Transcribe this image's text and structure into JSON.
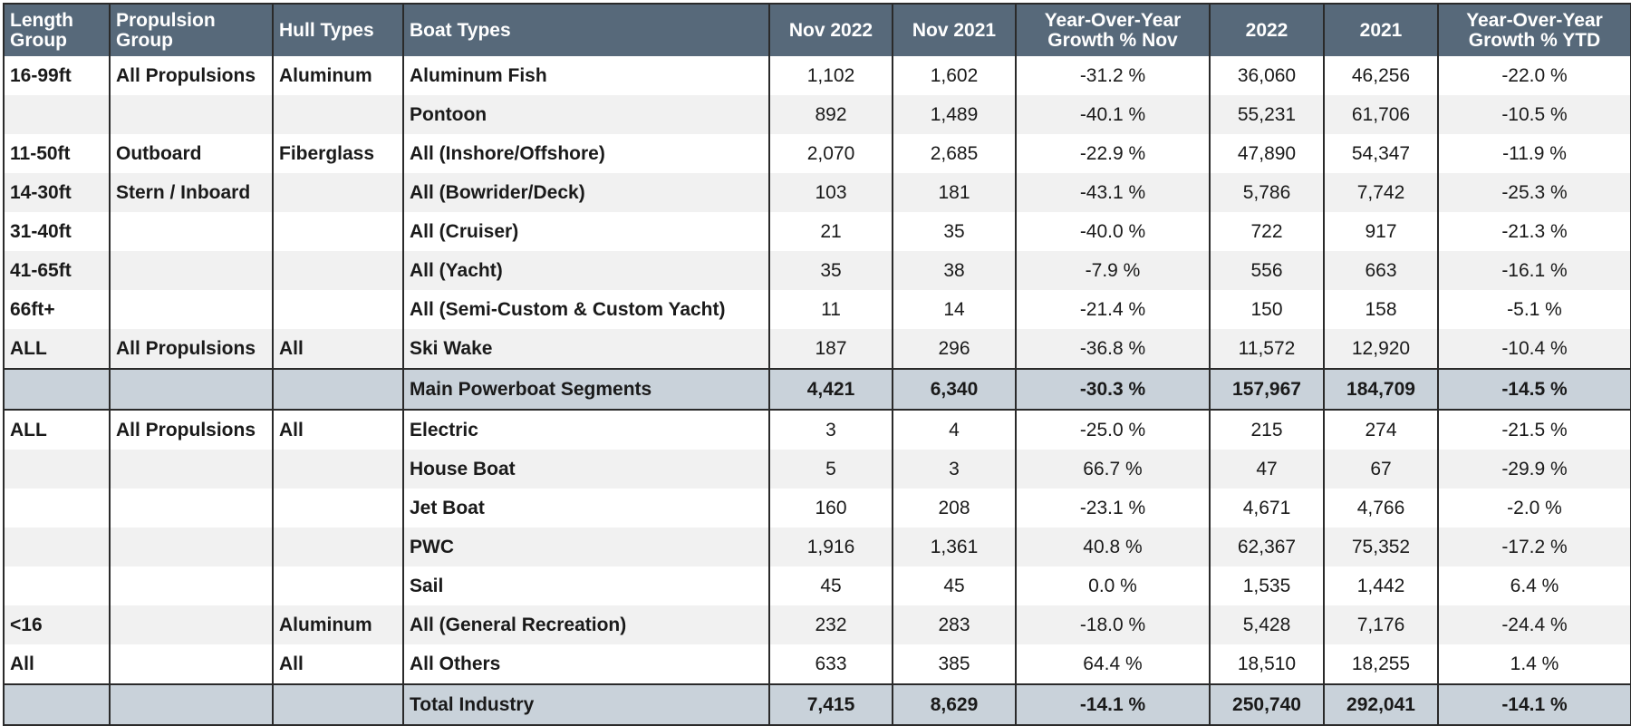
{
  "chart_data": {
    "type": "table",
    "columns": [
      "Length Group",
      "Propulsion Group",
      "Hull Types",
      "Boat Types",
      "Nov 2022",
      "Nov 2021",
      "Year-Over-Year Growth % Nov",
      "2022",
      "2021",
      "Year-Over-Year Growth % YTD"
    ],
    "rows": [
      [
        "16-99ft",
        "All Propulsions",
        "Aluminum",
        "Aluminum Fish",
        "1,102",
        "1,602",
        "-31.2 %",
        "36,060",
        "46,256",
        "-22.0 %"
      ],
      [
        "",
        "",
        "",
        "Pontoon",
        "892",
        "1,489",
        "-40.1 %",
        "55,231",
        "61,706",
        "-10.5 %"
      ],
      [
        "11-50ft",
        "Outboard",
        "Fiberglass",
        "All (Inshore/Offshore)",
        "2,070",
        "2,685",
        "-22.9 %",
        "47,890",
        "54,347",
        "-11.9 %"
      ],
      [
        "14-30ft",
        "Stern / Inboard",
        "",
        "All (Bowrider/Deck)",
        "103",
        "181",
        "-43.1 %",
        "5,786",
        "7,742",
        "-25.3 %"
      ],
      [
        "31-40ft",
        "",
        "",
        "All (Cruiser)",
        "21",
        "35",
        "-40.0 %",
        "722",
        "917",
        "-21.3 %"
      ],
      [
        "41-65ft",
        "",
        "",
        "All (Yacht)",
        "35",
        "38",
        "-7.9 %",
        "556",
        "663",
        "-16.1 %"
      ],
      [
        "66ft+",
        "",
        "",
        "All (Semi-Custom & Custom Yacht)",
        "11",
        "14",
        "-21.4 %",
        "150",
        "158",
        "-5.1 %"
      ],
      [
        "ALL",
        "All Propulsions",
        "All",
        "Ski Wake",
        "187",
        "296",
        "-36.8 %",
        "11,572",
        "12,920",
        "-10.4 %"
      ],
      [
        "",
        "",
        "",
        "Main Powerboat Segments",
        "4,421",
        "6,340",
        "-30.3 %",
        "157,967",
        "184,709",
        "-14.5 %"
      ],
      [
        "ALL",
        "All Propulsions",
        "All",
        "Electric",
        "3",
        "4",
        "-25.0 %",
        "215",
        "274",
        "-21.5 %"
      ],
      [
        "",
        "",
        "",
        "House Boat",
        "5",
        "3",
        "66.7 %",
        "47",
        "67",
        "-29.9 %"
      ],
      [
        "",
        "",
        "",
        "Jet Boat",
        "160",
        "208",
        "-23.1 %",
        "4,671",
        "4,766",
        "-2.0 %"
      ],
      [
        "",
        "",
        "",
        "PWC",
        "1,916",
        "1,361",
        "40.8 %",
        "62,367",
        "75,352",
        "-17.2 %"
      ],
      [
        "",
        "",
        "",
        "Sail",
        "45",
        "45",
        "0.0 %",
        "1,535",
        "1,442",
        "6.4 %"
      ],
      [
        "<16",
        "",
        "Aluminum",
        "All (General Recreation)",
        "232",
        "283",
        "-18.0 %",
        "5,428",
        "7,176",
        "-24.4 %"
      ],
      [
        "All",
        "",
        "All",
        "All Others",
        "633",
        "385",
        "64.4 %",
        "18,510",
        "18,255",
        "1.4 %"
      ],
      [
        "",
        "",
        "",
        "Total Industry",
        "7,415",
        "8,629",
        "-14.1 %",
        "250,740",
        "292,041",
        "-14.1 %"
      ]
    ],
    "subtotal_rows": [
      8,
      16
    ]
  },
  "colors": {
    "header_bg": "#57697a",
    "header_text": "#ffffff",
    "subtotal_bg": "#c9d2da",
    "stripe_bg": "#f1f1f1",
    "border": "#2a2a2a"
  }
}
